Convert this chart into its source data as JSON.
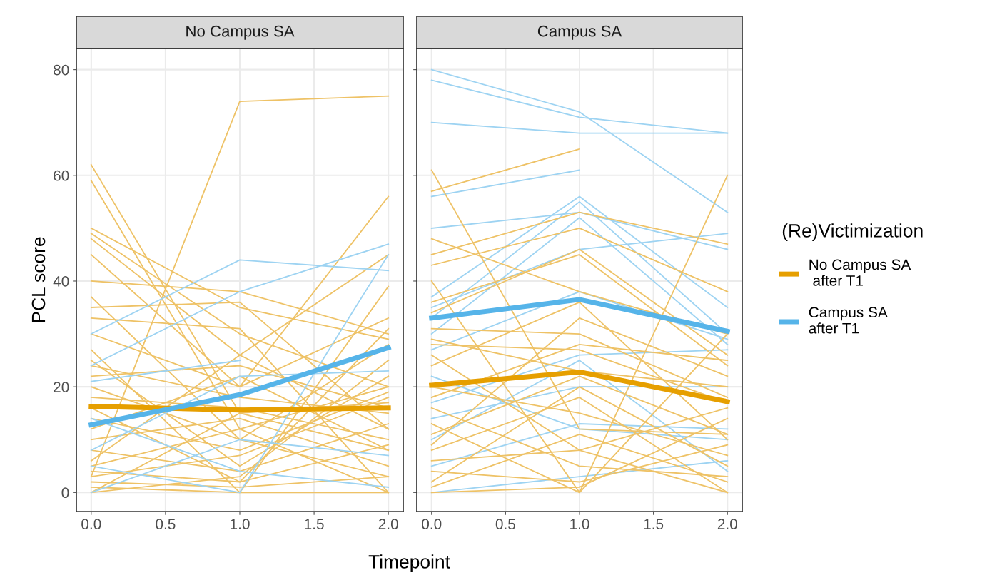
{
  "chart_data": [
    {
      "type": "line",
      "title": "No Campus SA",
      "ylabel": "PCL score",
      "xlabel": "Timepoint",
      "x": [
        0,
        1,
        2
      ],
      "xlim": [
        -0.1,
        2.1
      ],
      "xticks": [
        {
          "value": 0,
          "label": "0.0"
        },
        {
          "value": 0.5,
          "label": "0.5"
        },
        {
          "value": 1,
          "label": "1.0"
        },
        {
          "value": 1.5,
          "label": "1.5"
        },
        {
          "value": 2,
          "label": "2.0"
        }
      ],
      "ylim": [
        -3.6,
        84
      ],
      "yticks": [
        0,
        20,
        40,
        60,
        80
      ],
      "grid": true,
      "legend": false,
      "series": [
        {
          "color": "#eec266",
          "values": [
            3,
            74,
            75
          ]
        },
        {
          "color": "#eec266",
          "values": [
            62,
            15,
            8
          ]
        },
        {
          "color": "#eec266",
          "values": [
            59,
            12,
            20
          ]
        },
        {
          "color": "#eec266",
          "values": [
            50,
            35,
            29
          ]
        },
        {
          "color": "#eec266",
          "values": [
            49,
            30,
            20
          ]
        },
        {
          "color": "#eec266",
          "values": [
            48,
            26,
            45
          ]
        },
        {
          "color": "#eec266",
          "values": [
            45,
            20,
            56
          ]
        },
        {
          "color": "#eec266",
          "values": [
            40,
            38,
            30
          ]
        },
        {
          "color": "#eec266",
          "values": [
            37,
            10,
            3
          ]
        },
        {
          "color": "#eec266",
          "values": [
            35,
            36,
            12
          ]
        },
        {
          "color": "#eec266",
          "values": [
            33,
            31,
            0
          ]
        },
        {
          "color": "#eec266",
          "values": [
            30,
            20,
            33
          ]
        },
        {
          "color": "#eec266",
          "values": [
            27,
            0,
            39
          ]
        },
        {
          "color": "#eec266",
          "values": [
            25,
            5,
            22
          ]
        },
        {
          "color": "#eec266",
          "values": [
            24,
            18,
            15
          ]
        },
        {
          "color": "#eec266",
          "values": [
            22,
            24,
            16
          ]
        },
        {
          "color": "#eec266",
          "values": [
            20,
            10,
            28
          ]
        },
        {
          "color": "#eec266",
          "values": [
            18,
            16,
            10
          ]
        },
        {
          "color": "#eec266",
          "values": [
            16,
            2,
            31
          ]
        },
        {
          "color": "#eec266",
          "values": [
            14,
            8,
            19
          ]
        },
        {
          "color": "#eec266",
          "values": [
            12,
            22,
            8
          ]
        },
        {
          "color": "#eec266",
          "values": [
            10,
            14,
            5
          ]
        },
        {
          "color": "#eec266",
          "values": [
            8,
            4,
            13
          ]
        },
        {
          "color": "#eec266",
          "values": [
            6,
            26,
            12
          ]
        },
        {
          "color": "#eec266",
          "values": [
            5,
            12,
            0
          ]
        },
        {
          "color": "#eec266",
          "values": [
            4,
            2,
            9
          ]
        },
        {
          "color": "#eec266",
          "values": [
            3,
            7,
            18
          ]
        },
        {
          "color": "#eec266",
          "values": [
            2,
            1,
            3
          ]
        },
        {
          "color": "#eec266",
          "values": [
            1,
            0,
            0
          ]
        },
        {
          "color": "#eec266",
          "values": [
            0,
            15,
            17
          ]
        },
        {
          "color": "#eec266",
          "values": [
            0,
            3,
            25
          ]
        },
        {
          "color": "#9dd3f2",
          "values": [
            30,
            44,
            42
          ]
        },
        {
          "color": "#9dd3f2",
          "values": [
            24,
            38,
            47
          ]
        },
        {
          "color": "#9dd3f2",
          "values": [
            21,
            25,
            null
          ]
        },
        {
          "color": "#9dd3f2",
          "values": [
            8,
            22,
            23
          ]
        },
        {
          "color": "#9dd3f2",
          "values": [
            5,
            0,
            45
          ]
        },
        {
          "color": "#9dd3f2",
          "values": [
            0,
            10,
            7
          ]
        },
        {
          "color": "#9dd3f2",
          "values": [
            14,
            4,
            1
          ]
        },
        {
          "color": "#e69f00",
          "values": [
            16.3,
            15.6,
            16
          ]
        },
        {
          "color": "#56b4e9",
          "values": [
            12.8,
            18.5,
            27.4
          ]
        }
      ]
    },
    {
      "type": "line",
      "title": "Campus SA",
      "legend_title": "(Re)Victimization",
      "legend": "right",
      "tick_labels": "x",
      "x": [
        0,
        1,
        2
      ],
      "xlim": [
        -0.1,
        2.1
      ],
      "xticks": [
        {
          "value": 0,
          "label": "0.0"
        },
        {
          "value": 0.5,
          "label": "0.5"
        },
        {
          "value": 1,
          "label": "1.0"
        },
        {
          "value": 1.5,
          "label": "1.5"
        },
        {
          "value": 2,
          "label": "2.0"
        }
      ],
      "ylim": [
        -3.6,
        84
      ],
      "yticks": [
        0,
        20,
        40,
        60,
        80
      ],
      "grid": true,
      "series": [
        {
          "color": "#9dd3f2",
          "values": [
            80,
            72,
            53
          ]
        },
        {
          "color": "#9dd3f2",
          "values": [
            78,
            71,
            68
          ]
        },
        {
          "color": "#9dd3f2",
          "values": [
            70,
            68,
            68
          ]
        },
        {
          "color": "#9dd3f2",
          "values": [
            56,
            61,
            null
          ]
        },
        {
          "color": "#9dd3f2",
          "values": [
            50,
            53,
            46
          ]
        },
        {
          "color": "#9dd3f2",
          "values": [
            37,
            56,
            35
          ]
        },
        {
          "color": "#9dd3f2",
          "values": [
            35,
            46,
            49
          ]
        },
        {
          "color": "#9dd3f2",
          "values": [
            33,
            55,
            30
          ]
        },
        {
          "color": "#9dd3f2",
          "values": [
            30,
            52,
            28
          ]
        },
        {
          "color": "#9dd3f2",
          "values": [
            27,
            38,
            29
          ]
        },
        {
          "color": "#9dd3f2",
          "values": [
            22,
            12,
            10
          ]
        },
        {
          "color": "#9dd3f2",
          "values": [
            14,
            20,
            20
          ]
        },
        {
          "color": "#9dd3f2",
          "values": [
            10,
            25,
            4
          ]
        },
        {
          "color": "#9dd3f2",
          "values": [
            0,
            3,
            6
          ]
        },
        {
          "color": "#9dd3f2",
          "values": [
            5,
            13,
            12
          ]
        },
        {
          "color": "#9dd3f2",
          "values": [
            17,
            26,
            27
          ]
        },
        {
          "color": "#eec266",
          "values": [
            61,
            12,
            11
          ]
        },
        {
          "color": "#eec266",
          "values": [
            57,
            65,
            null
          ]
        },
        {
          "color": "#eec266",
          "values": [
            48,
            38,
            30
          ]
        },
        {
          "color": "#eec266",
          "values": [
            45,
            53,
            47
          ]
        },
        {
          "color": "#eec266",
          "values": [
            43,
            50,
            38
          ]
        },
        {
          "color": "#eec266",
          "values": [
            40,
            0,
            60
          ]
        },
        {
          "color": "#eec266",
          "values": [
            36,
            45,
            24
          ]
        },
        {
          "color": "#eec266",
          "values": [
            34,
            46,
            26
          ]
        },
        {
          "color": "#eec266",
          "values": [
            31,
            30,
            18
          ]
        },
        {
          "color": "#eec266",
          "values": [
            29,
            23,
            20
          ]
        },
        {
          "color": "#eec266",
          "values": [
            28,
            27,
            17
          ]
        },
        {
          "color": "#eec266",
          "values": [
            26,
            8,
            0
          ]
        },
        {
          "color": "#eec266",
          "values": [
            24,
            36,
            10
          ]
        },
        {
          "color": "#eec266",
          "values": [
            20,
            15,
            7
          ]
        },
        {
          "color": "#eec266",
          "values": [
            18,
            28,
            25
          ]
        },
        {
          "color": "#eec266",
          "values": [
            16,
            5,
            3
          ]
        },
        {
          "color": "#eec266",
          "values": [
            13,
            0,
            30
          ]
        },
        {
          "color": "#eec266",
          "values": [
            11,
            22,
            11
          ]
        },
        {
          "color": "#eec266",
          "values": [
            8,
            18,
            0
          ]
        },
        {
          "color": "#eec266",
          "values": [
            6,
            8,
            16
          ]
        },
        {
          "color": "#eec266",
          "values": [
            4,
            2,
            9
          ]
        },
        {
          "color": "#eec266",
          "values": [
            2,
            20,
            5
          ]
        },
        {
          "color": "#eec266",
          "values": [
            1,
            11,
            2
          ]
        },
        {
          "color": "#eec266",
          "values": [
            0,
            1,
            14
          ]
        },
        {
          "color": "#eec266",
          "values": [
            9,
            33,
            22
          ]
        },
        {
          "name": "No Campus SA\n after T1",
          "color": "#e69f00",
          "values": [
            20.3,
            22.8,
            17.2
          ]
        },
        {
          "name": "Campus SA\nafter T1",
          "color": "#56b4e9",
          "values": [
            33,
            36.5,
            30.5
          ]
        }
      ]
    }
  ]
}
